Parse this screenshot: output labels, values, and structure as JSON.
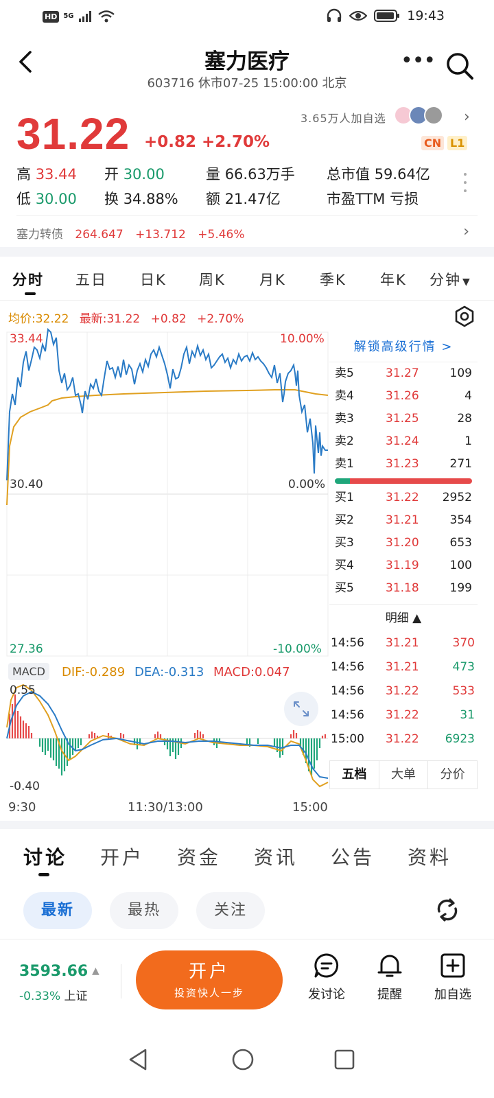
{
  "status_bar": {
    "network_hd": "HD",
    "network": "5G",
    "time": "19:43"
  },
  "header": {
    "title": "塞力医疗",
    "subtitle": "603716 休市07-25 15:00:00 北京"
  },
  "quote": {
    "price": "31.22",
    "change": "+0.82 +2.70%",
    "followers": "3.65万人加自选",
    "tag_cn": "CN",
    "tag_l1": "L1",
    "stats": {
      "high_label": "高",
      "high": "33.44",
      "open_label": "开",
      "open": "30.00",
      "volume_label": "量",
      "volume": "66.63万手",
      "mktcap_label": "总市值",
      "mktcap": "59.64亿",
      "low_label": "低",
      "low": "30.00",
      "turnover_label": "换",
      "turnover": "34.88%",
      "amount_label": "额",
      "amount": "21.47亿",
      "pe_label": "市盈TTM",
      "pe": "亏损"
    },
    "bond": {
      "name": "塞力转债",
      "price": "264.647",
      "change": "+13.712",
      "pct": "+5.46%"
    }
  },
  "period_tabs": [
    "分时",
    "五日",
    "日K",
    "周K",
    "月K",
    "季K",
    "年K",
    "分钟"
  ],
  "chart": {
    "avg_label": "均价:32.22",
    "latest_label": "最新:31.22",
    "chg": "+0.82",
    "pct": "+2.70%",
    "y_top": "33.44",
    "y_mid": "30.40",
    "y_bot": "27.36",
    "pct_top": "10.00%",
    "pct_mid": "0.00%",
    "pct_bot": "-10.00%",
    "macd_tag": "MACD",
    "dif": "DIF:-0.289",
    "dea": "DEA:-0.313",
    "macd": "MACD:0.047",
    "macd_top": "0.55",
    "macd_bot": "-0.40",
    "time_start": "9:30",
    "time_mid": "11:30/13:00",
    "time_end": "15:00"
  },
  "order_book": {
    "unlock": "解锁高级行情 >",
    "asks": [
      {
        "label": "卖5",
        "price": "31.27",
        "vol": "109"
      },
      {
        "label": "卖4",
        "price": "31.26",
        "vol": "4"
      },
      {
        "label": "卖3",
        "price": "31.25",
        "vol": "28"
      },
      {
        "label": "卖2",
        "price": "31.24",
        "vol": "1"
      },
      {
        "label": "卖1",
        "price": "31.23",
        "vol": "271"
      }
    ],
    "bids": [
      {
        "label": "买1",
        "price": "31.22",
        "vol": "2952"
      },
      {
        "label": "买2",
        "price": "31.21",
        "vol": "354"
      },
      {
        "label": "买3",
        "price": "31.20",
        "vol": "653"
      },
      {
        "label": "买4",
        "price": "31.19",
        "vol": "100"
      },
      {
        "label": "买5",
        "price": "31.18",
        "vol": "199"
      }
    ],
    "detail_header": "明细 ▲",
    "details": [
      {
        "time": "14:56",
        "price": "31.21",
        "vol": "370"
      },
      {
        "time": "14:56",
        "price": "31.21",
        "vol": "473"
      },
      {
        "time": "14:56",
        "price": "31.22",
        "vol": "533"
      },
      {
        "time": "14:56",
        "price": "31.22",
        "vol": "31"
      },
      {
        "time": "15:00",
        "price": "31.22",
        "vol": "6923"
      }
    ],
    "tabs": [
      "五档",
      "大单",
      "分价"
    ]
  },
  "bottom_tabs": [
    "讨论",
    "开户",
    "资金",
    "资讯",
    "公告",
    "资料"
  ],
  "filters": [
    "最新",
    "最热",
    "关注"
  ],
  "toolbar": {
    "index_value": "3593.66",
    "index_change": "-0.33%",
    "index_name": "上证",
    "open_btn": "开户",
    "open_sub": "投资快人一步",
    "discuss": "发讨论",
    "remind": "提醒",
    "add": "加自选"
  },
  "colors": {
    "up": "#e03a3a",
    "down": "#1a9a6b",
    "accent": "#1a6fd4",
    "brand": "#f26b1d"
  }
}
